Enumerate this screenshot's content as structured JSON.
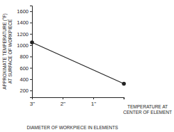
{
  "chart_data": {
    "type": "line",
    "x_label": "DIAMETER OF WORKPIECE IN ELEMENTS",
    "y_label": [
      "APPROXIMATE TEMPERATURE (°F)",
      "AT SURFACE OF WORKPIECE"
    ],
    "x": [
      3,
      0
    ],
    "values": [
      1050,
      320
    ],
    "color": "#222222",
    "marker": "circle",
    "xlim": [
      3,
      0
    ],
    "xticks": [
      {
        "value": 3,
        "label": "3\""
      },
      {
        "value": 2,
        "label": "2\""
      },
      {
        "value": 1,
        "label": "1\""
      }
    ],
    "ylim": [
      80,
      1700
    ],
    "yticks": [
      200,
      400,
      600,
      800,
      1000,
      1200,
      1400,
      1600
    ],
    "annotations": [
      {
        "text": [
          "TEMPERATURE AT",
          "CENTER OF ELEMENT"
        ],
        "x": 0
      }
    ]
  }
}
